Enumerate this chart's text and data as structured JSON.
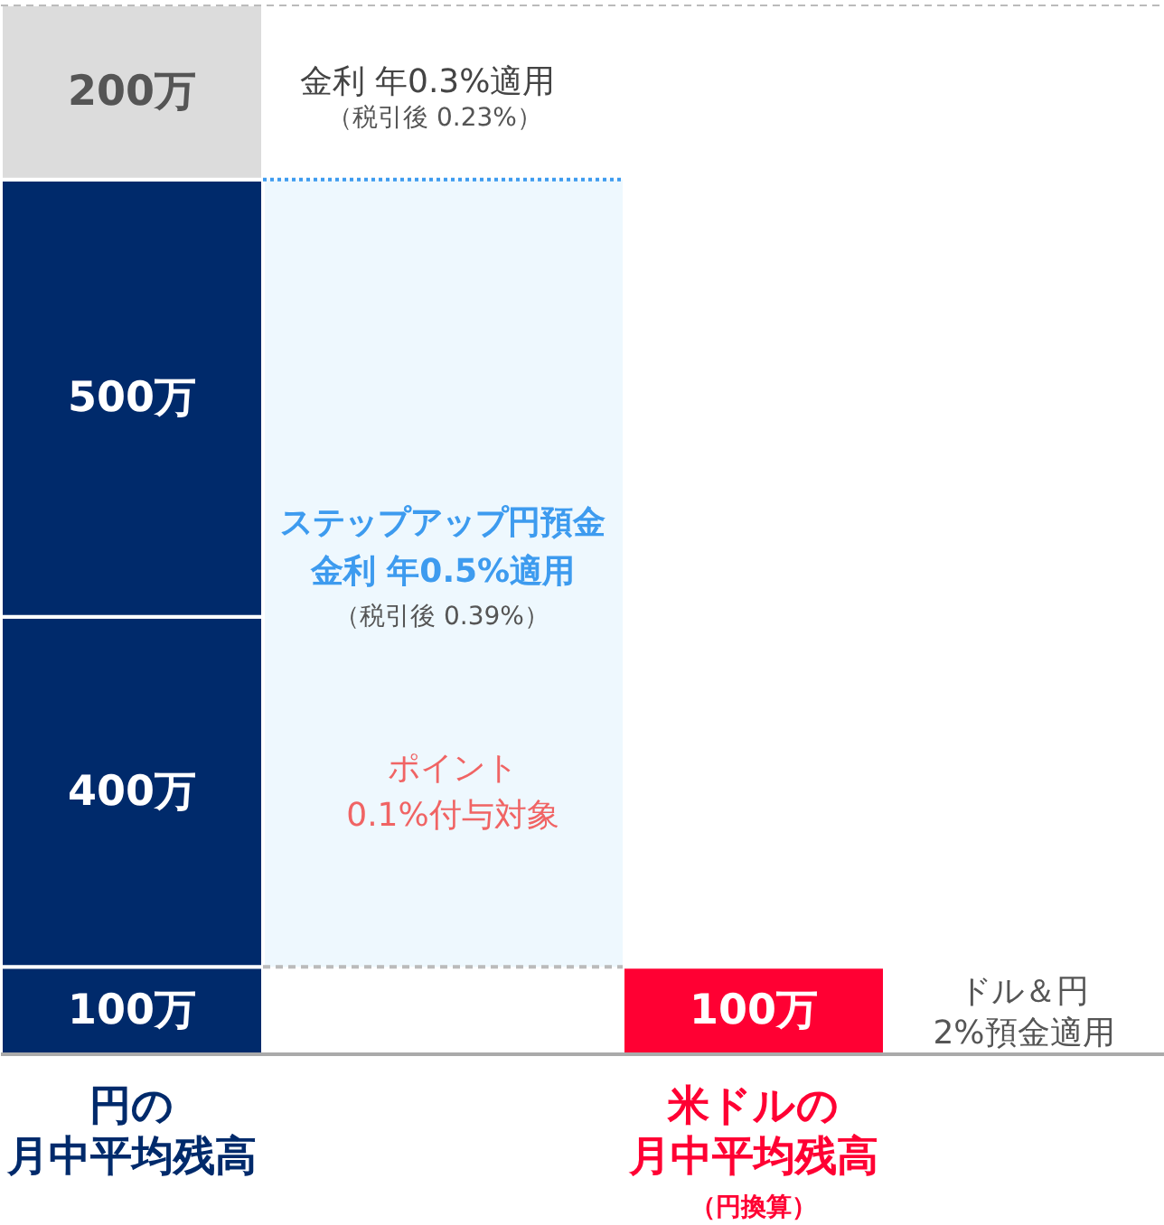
{
  "chart_data": {
    "type": "bar",
    "stacked": true,
    "categories": [
      "円の月中平均残高",
      "米ドルの月中平均残高（円換算）"
    ],
    "series": [
      {
        "values": [
          100,
          100
        ],
        "colors": [
          "#002a6b",
          "#ff0033"
        ],
        "value_labels": [
          "100万",
          "100万"
        ]
      },
      {
        "values": [
          400,
          null
        ],
        "color": "#002a6b",
        "value_labels": [
          "400万",
          null
        ]
      },
      {
        "values": [
          500,
          null
        ],
        "color": "#002a6b",
        "value_labels": [
          "500万",
          null
        ]
      },
      {
        "values": [
          200,
          null
        ],
        "color": "#dcdcdc",
        "value_labels": [
          "200万",
          null
        ]
      }
    ],
    "ylim": [
      0,
      1200
    ],
    "tick_labels": "x",
    "bands": [
      {
        "axis": "y",
        "from": 100,
        "to": 1000,
        "label": "ステップアップ円預金金利 年0.5%適用",
        "color": "#eef8fe"
      }
    ],
    "ref_lines": [
      {
        "axis": "y",
        "value": 1200,
        "color": "#bbbbbb",
        "line_style": "dashed"
      },
      {
        "axis": "y",
        "value": 1000,
        "color": "#3d9bef",
        "line_style": "dotted"
      },
      {
        "axis": "y",
        "value": 100,
        "color": "#bbbbbb",
        "line_style": "dashed"
      }
    ],
    "annotations": [
      "金利 年0.3%適用",
      "（税引後 0.23%）",
      "（税引後 0.39%）",
      "ポイント0.1%付与対象",
      "ドル＆円2%預金適用"
    ]
  }
}
